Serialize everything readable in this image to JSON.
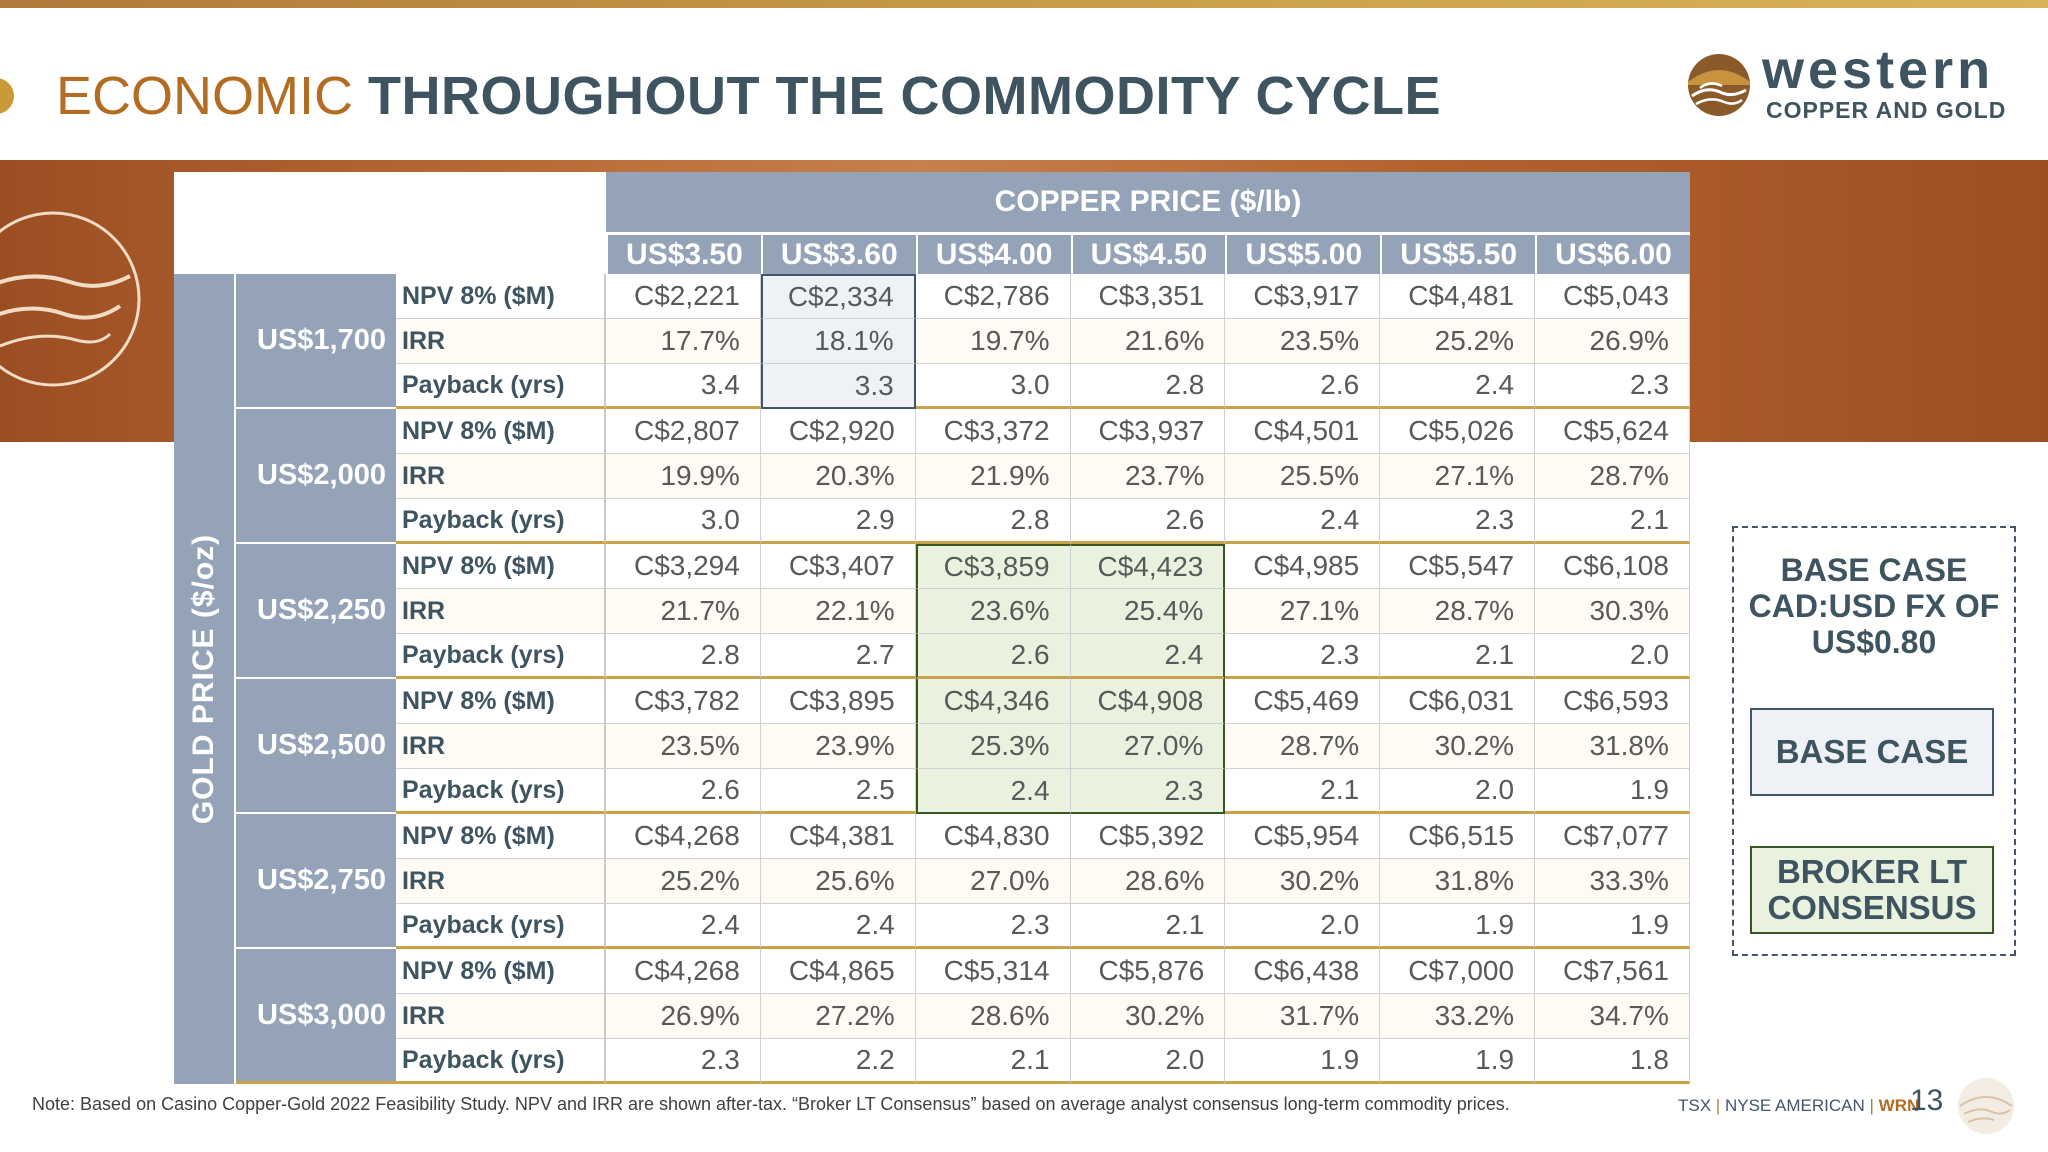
{
  "header": {
    "title_light": "ECONOMIC",
    "title_bold": "THROUGHOUT THE COMMODITY CYCLE"
  },
  "logo": {
    "name": "western",
    "subtitle": "COPPER AND GOLD",
    "icon": "sun-bird-emblem-icon"
  },
  "table": {
    "copper_header": "COPPER PRICE ($/lb)",
    "gold_header": "GOLD PRICE ($/oz)",
    "copper_prices": [
      "US$3.50",
      "US$3.60",
      "US$4.00",
      "US$4.50",
      "US$5.00",
      "US$5.50",
      "US$6.00"
    ],
    "gold_rows": [
      {
        "gold": "US$1,700",
        "metrics": [
          {
            "label": "NPV 8% ($M)",
            "values": [
              "C$2,221",
              "C$2,334",
              "C$2,786",
              "C$3,351",
              "C$3,917",
              "C$4,481",
              "C$5,043"
            ]
          },
          {
            "label": "IRR",
            "values": [
              "17.7%",
              "18.1%",
              "19.7%",
              "21.6%",
              "23.5%",
              "25.2%",
              "26.9%"
            ]
          },
          {
            "label": "Payback (yrs)",
            "values": [
              "3.4",
              "3.3",
              "3.0",
              "2.8",
              "2.6",
              "2.4",
              "2.3"
            ]
          }
        ]
      },
      {
        "gold": "US$2,000",
        "metrics": [
          {
            "label": "NPV 8% ($M)",
            "values": [
              "C$2,807",
              "C$2,920",
              "C$3,372",
              "C$3,937",
              "C$4,501",
              "C$5,026",
              "C$5,624"
            ]
          },
          {
            "label": "IRR",
            "values": [
              "19.9%",
              "20.3%",
              "21.9%",
              "23.7%",
              "25.5%",
              "27.1%",
              "28.7%"
            ]
          },
          {
            "label": "Payback (yrs)",
            "values": [
              "3.0",
              "2.9",
              "2.8",
              "2.6",
              "2.4",
              "2.3",
              "2.1"
            ]
          }
        ]
      },
      {
        "gold": "US$2,250",
        "metrics": [
          {
            "label": "NPV 8% ($M)",
            "values": [
              "C$3,294",
              "C$3,407",
              "C$3,859",
              "C$4,423",
              "C$4,985",
              "C$5,547",
              "C$6,108"
            ]
          },
          {
            "label": "IRR",
            "values": [
              "21.7%",
              "22.1%",
              "23.6%",
              "25.4%",
              "27.1%",
              "28.7%",
              "30.3%"
            ]
          },
          {
            "label": "Payback (yrs)",
            "values": [
              "2.8",
              "2.7",
              "2.6",
              "2.4",
              "2.3",
              "2.1",
              "2.0"
            ]
          }
        ]
      },
      {
        "gold": "US$2,500",
        "metrics": [
          {
            "label": "NPV 8% ($M)",
            "values": [
              "C$3,782",
              "C$3,895",
              "C$4,346",
              "C$4,908",
              "C$5,469",
              "C$6,031",
              "C$6,593"
            ]
          },
          {
            "label": "IRR",
            "values": [
              "23.5%",
              "23.9%",
              "25.3%",
              "27.0%",
              "28.7%",
              "30.2%",
              "31.8%"
            ]
          },
          {
            "label": "Payback (yrs)",
            "values": [
              "2.6",
              "2.5",
              "2.4",
              "2.3",
              "2.1",
              "2.0",
              "1.9"
            ]
          }
        ]
      },
      {
        "gold": "US$2,750",
        "metrics": [
          {
            "label": "NPV 8% ($M)",
            "values": [
              "C$4,268",
              "C$4,381",
              "C$4,830",
              "C$5,392",
              "C$5,954",
              "C$6,515",
              "C$7,077"
            ]
          },
          {
            "label": "IRR",
            "values": [
              "25.2%",
              "25.6%",
              "27.0%",
              "28.6%",
              "30.2%",
              "31.8%",
              "33.3%"
            ]
          },
          {
            "label": "Payback (yrs)",
            "values": [
              "2.4",
              "2.4",
              "2.3",
              "2.1",
              "2.0",
              "1.9",
              "1.9"
            ]
          }
        ]
      },
      {
        "gold": "US$3,000",
        "metrics": [
          {
            "label": "NPV 8% ($M)",
            "values": [
              "C$4,268",
              "C$4,865",
              "C$5,314",
              "C$5,876",
              "C$6,438",
              "C$7,000",
              "C$7,561"
            ]
          },
          {
            "label": "IRR",
            "values": [
              "26.9%",
              "27.2%",
              "28.6%",
              "30.2%",
              "31.7%",
              "33.2%",
              "34.7%"
            ]
          },
          {
            "label": "Payback (yrs)",
            "values": [
              "2.3",
              "2.2",
              "2.1",
              "2.0",
              "1.9",
              "1.9",
              "1.8"
            ]
          }
        ]
      }
    ]
  },
  "legend": {
    "title": "BASE CASE CAD:USD FX OF US$0.80",
    "base_case": "BASE CASE",
    "broker": "BROKER LT CONSENSUS"
  },
  "footer": {
    "note": "Note: Based on Casino Copper-Gold 2022 Feasibility Study. NPV and IRR are shown after-tax. “Broker LT Consensus” based on average analyst consensus long-term commodity prices.",
    "ticker_1": "TSX",
    "ticker_2": "NYSE AMERICAN",
    "ticker_3": "WRN",
    "separator": "|",
    "page": "13"
  },
  "colors": {
    "accent_orange": "#b36d23",
    "slate": "#3e5460",
    "header_blue": "#94a3b8",
    "base_case_fill": "#eef1f5",
    "broker_fill": "#e9f2df",
    "gold_line": "#c9a24b"
  }
}
